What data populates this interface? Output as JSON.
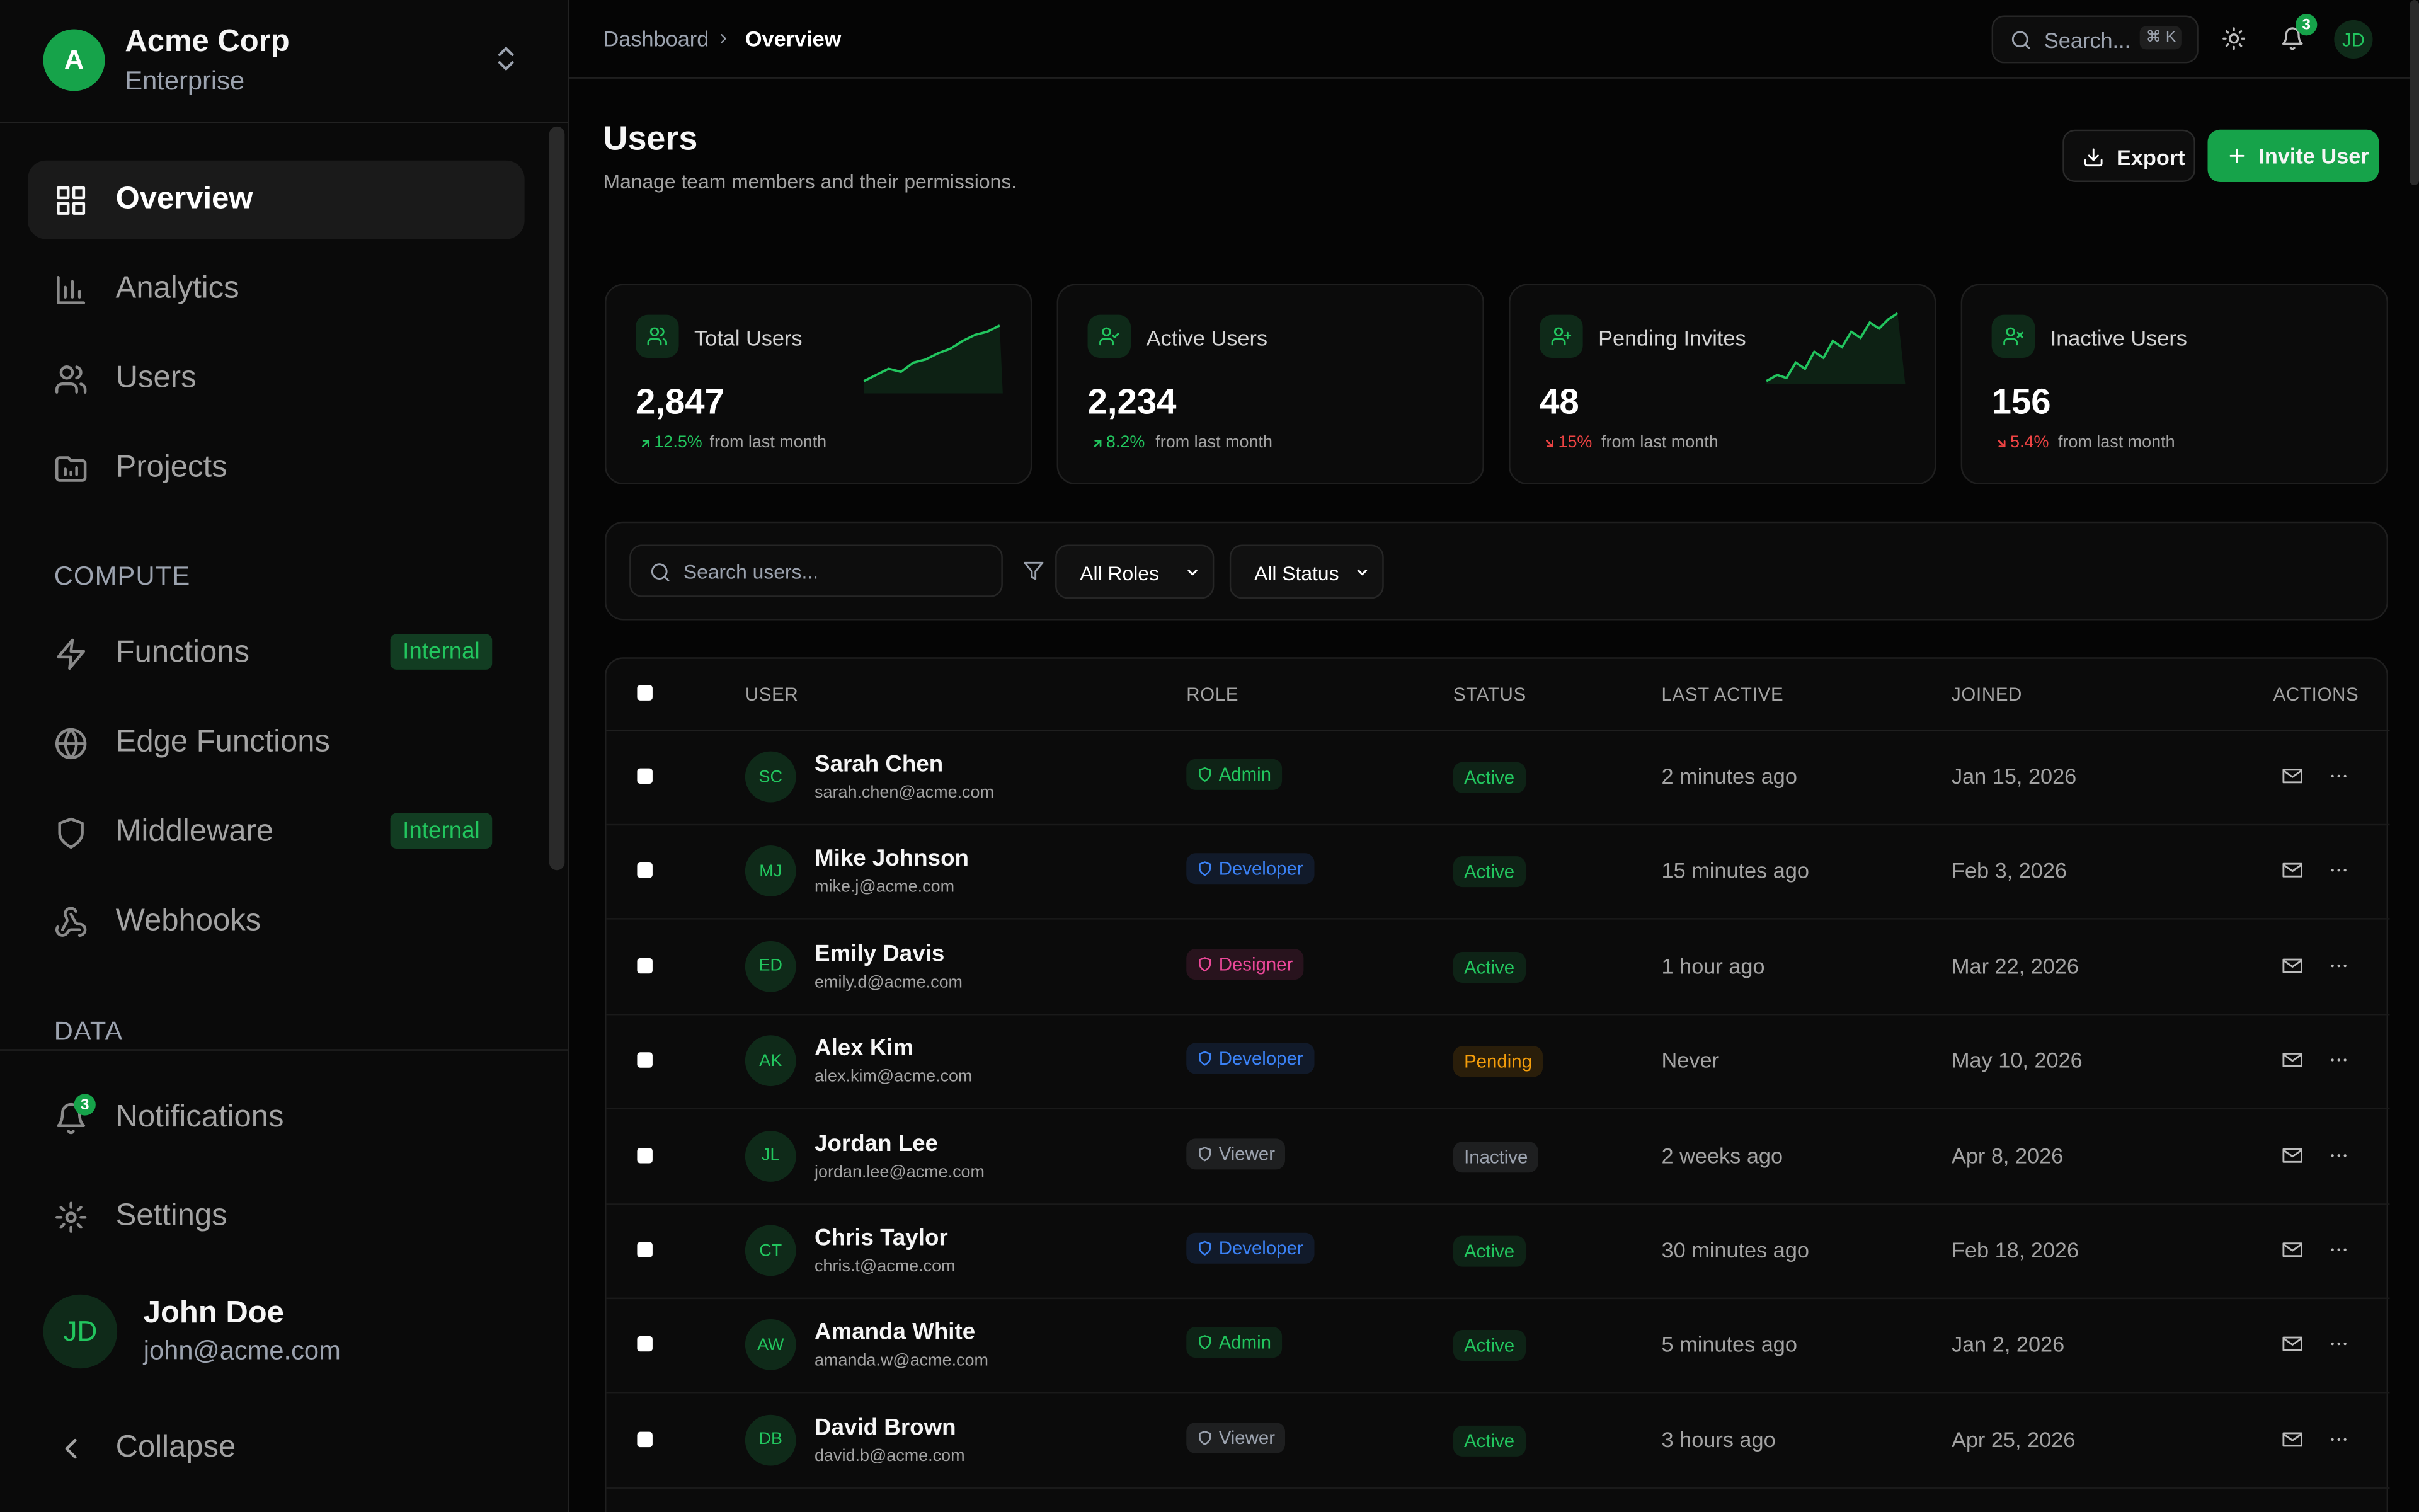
{
  "sidebar": {
    "org_initial": "A",
    "org_name": "Acme Corp",
    "org_plan": "Enterprise",
    "nav": [
      {
        "label": "Overview"
      },
      {
        "label": "Analytics"
      },
      {
        "label": "Users"
      },
      {
        "label": "Projects"
      }
    ],
    "sections": [
      {
        "title": "COMPUTE",
        "items": [
          {
            "label": "Functions",
            "badge": "Internal"
          },
          {
            "label": "Edge Functions"
          },
          {
            "label": "Middleware",
            "badge": "Internal"
          },
          {
            "label": "Webhooks"
          }
        ]
      },
      {
        "title": "DATA"
      }
    ],
    "notifications": {
      "label": "Notifications",
      "count": "3"
    },
    "settings": "Settings",
    "user": {
      "initials": "JD",
      "name": "John Doe",
      "email": "john@acme.com"
    },
    "collapse": "Collapse"
  },
  "topbar": {
    "breadcrumb": [
      "Dashboard",
      "Overview"
    ],
    "search": "Search...",
    "shortcut": "⌘ K",
    "notification_count": "3",
    "avatar": "JD"
  },
  "header": {
    "title": "Users",
    "subtitle": "Manage team members and their permissions.",
    "export": "Export",
    "invite": "Invite User"
  },
  "stats": [
    {
      "label": "Total Users",
      "value": "2,847",
      "change": "12.5%",
      "direction": "up",
      "note": "from last month"
    },
    {
      "label": "Active Users",
      "value": "2,234",
      "change": "8.2%",
      "direction": "up",
      "note": "from last month"
    },
    {
      "label": "Pending Invites",
      "value": "48",
      "change": "15%",
      "direction": "down",
      "note": "from last month"
    },
    {
      "label": "Inactive Users",
      "value": "156",
      "change": "5.4%",
      "direction": "down",
      "note": "from last month"
    }
  ],
  "filters": {
    "search": "Search users...",
    "roles": "All Roles",
    "status": "All Status"
  },
  "table": {
    "columns": [
      "USER",
      "ROLE",
      "STATUS",
      "LAST ACTIVE",
      "JOINED",
      "ACTIONS"
    ],
    "rows": [
      {
        "initials": "SC",
        "name": "Sarah Chen",
        "email": "sarah.chen@acme.com",
        "role": "Admin",
        "role_color": "#22c55e",
        "status": "Active",
        "status_color": "#22c55e",
        "last_active": "2 minutes ago",
        "joined": "Jan 15, 2026"
      },
      {
        "initials": "MJ",
        "name": "Mike Johnson",
        "email": "mike.j@acme.com",
        "role": "Developer",
        "role_color": "#3b82f6",
        "status": "Active",
        "status_color": "#22c55e",
        "last_active": "15 minutes ago",
        "joined": "Feb 3, 2026"
      },
      {
        "initials": "ED",
        "name": "Emily Davis",
        "email": "emily.d@acme.com",
        "role": "Designer",
        "role_color": "#ec4899",
        "status": "Active",
        "status_color": "#22c55e",
        "last_active": "1 hour ago",
        "joined": "Mar 22, 2026"
      },
      {
        "initials": "AK",
        "name": "Alex Kim",
        "email": "alex.kim@acme.com",
        "role": "Developer",
        "role_color": "#3b82f6",
        "status": "Pending",
        "status_color": "#f59e0b",
        "last_active": "Never",
        "joined": "May 10, 2026"
      },
      {
        "initials": "JL",
        "name": "Jordan Lee",
        "email": "jordan.lee@acme.com",
        "role": "Viewer",
        "role_color": "#9ca3af",
        "status": "Inactive",
        "status_color": "#9ca3af",
        "last_active": "2 weeks ago",
        "joined": "Apr 8, 2026"
      },
      {
        "initials": "CT",
        "name": "Chris Taylor",
        "email": "chris.t@acme.com",
        "role": "Developer",
        "role_color": "#3b82f6",
        "status": "Active",
        "status_color": "#22c55e",
        "last_active": "30 minutes ago",
        "joined": "Feb 18, 2026"
      },
      {
        "initials": "AW",
        "name": "Amanda White",
        "email": "amanda.w@acme.com",
        "role": "Admin",
        "role_color": "#22c55e",
        "status": "Active",
        "status_color": "#22c55e",
        "last_active": "5 minutes ago",
        "joined": "Jan 2, 2026"
      },
      {
        "initials": "DB",
        "name": "David Brown",
        "email": "david.b@acme.com",
        "role": "Viewer",
        "role_color": "#9ca3af",
        "status": "Active",
        "status_color": "#22c55e",
        "last_active": "3 hours ago",
        "joined": "Apr 25, 2026"
      }
    ]
  }
}
